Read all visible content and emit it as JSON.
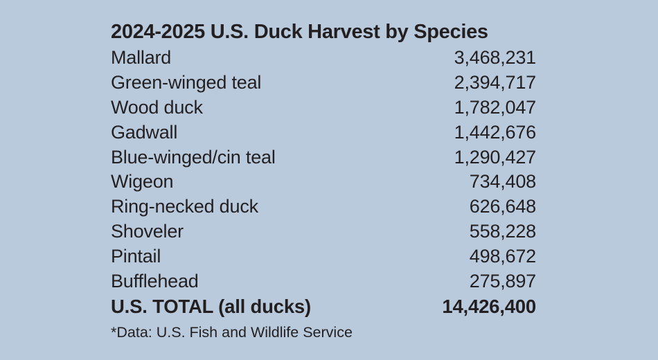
{
  "chart_data": {
    "type": "table",
    "title": "2024-2025 U.S. Duck Harvest by Species",
    "rows": [
      {
        "species": "Mallard",
        "value": "3,468,231"
      },
      {
        "species": "Green-winged teal",
        "value": "2,394,717"
      },
      {
        "species": "Wood duck",
        "value": "1,782,047"
      },
      {
        "species": "Gadwall",
        "value": "1,442,676"
      },
      {
        "species": "Blue-winged/cin teal",
        "value": "1,290,427"
      },
      {
        "species": "Wigeon",
        "value": "734,408"
      },
      {
        "species": "Ring-necked duck",
        "value": "626,648"
      },
      {
        "species": "Shoveler",
        "value": "558,228"
      },
      {
        "species": "Pintail",
        "value": "498,672"
      },
      {
        "species": "Bufflehead",
        "value": "275,897"
      }
    ],
    "total": {
      "label": "U.S. TOTAL (all ducks)",
      "value": "14,426,400"
    },
    "footnote": "*Data: U.S. Fish and Wildlife Service",
    "colors": {
      "background": "#b9cadd",
      "text": "#231f20"
    }
  }
}
